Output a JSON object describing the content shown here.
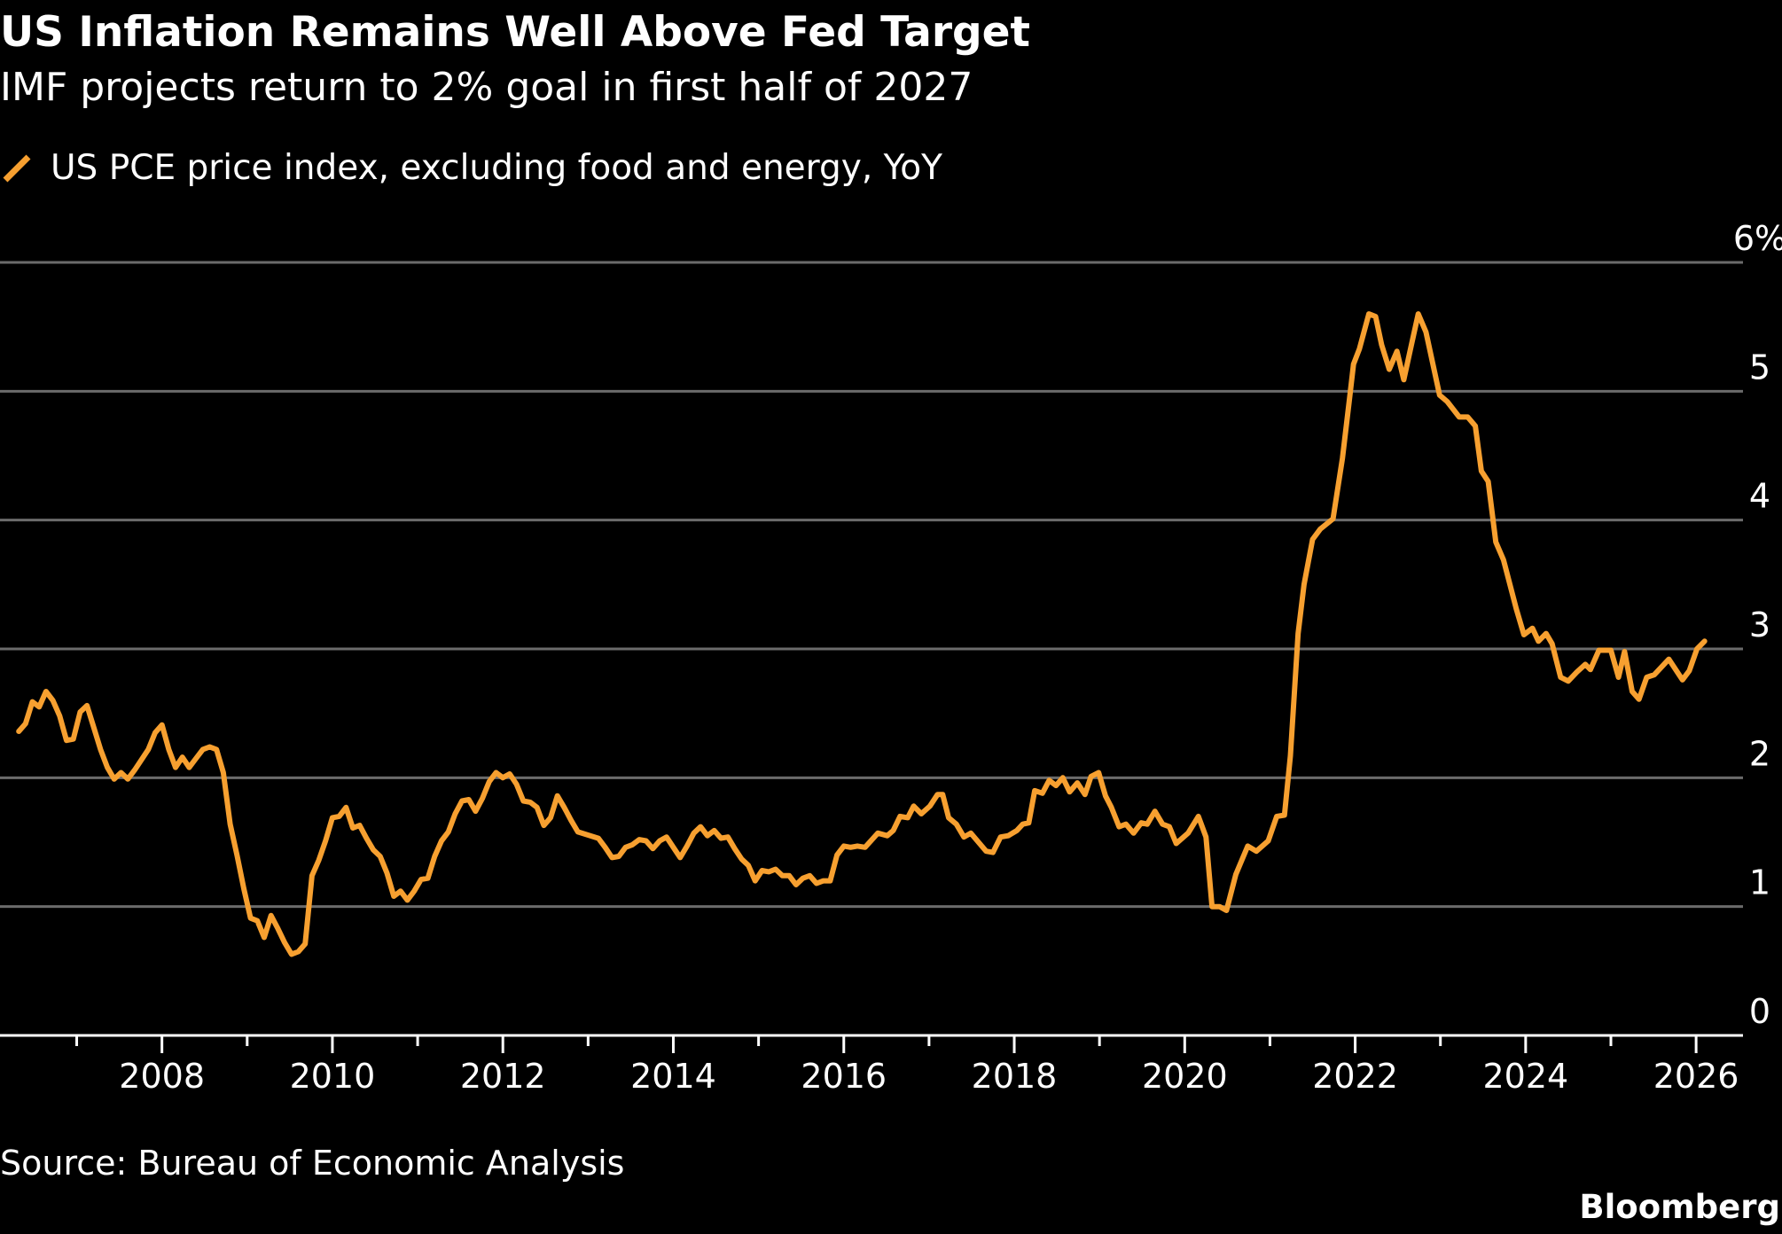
{
  "chart_data": {
    "type": "line",
    "title": "US Inflation Remains Well Above Fed Target",
    "subtitle": "IMF projects return to 2% goal in first half of 2027",
    "xlabel": "",
    "ylabel": "",
    "source": "Source: Bureau of Economic Analysis",
    "logo": "Bloomberg",
    "ylim": [
      0,
      6
    ],
    "xlim": [
      2006.1,
      2026.55
    ],
    "grid": true,
    "legend_position": "top-left",
    "y_ticks": [
      {
        "value": 0,
        "label": "0"
      },
      {
        "value": 1,
        "label": "1"
      },
      {
        "value": 2,
        "label": "2"
      },
      {
        "value": 3,
        "label": "3"
      },
      {
        "value": 4,
        "label": "4"
      },
      {
        "value": 5,
        "label": "5"
      },
      {
        "value": 6,
        "label": "6%"
      }
    ],
    "x_ticks": [
      {
        "value": 2008,
        "label": "2008"
      },
      {
        "value": 2010,
        "label": "2010"
      },
      {
        "value": 2012,
        "label": "2012"
      },
      {
        "value": 2014,
        "label": "2014"
      },
      {
        "value": 2016,
        "label": "2016"
      },
      {
        "value": 2018,
        "label": "2018"
      },
      {
        "value": 2020,
        "label": "2020"
      },
      {
        "value": 2022,
        "label": "2022"
      },
      {
        "value": 2024,
        "label": "2024"
      },
      {
        "value": 2026,
        "label": "2026"
      }
    ],
    "series": [
      {
        "name": "US PCE price index, excluding food and energy, YoY",
        "color": "#f7a030",
        "points": [
          [
            2006.32,
            2.36
          ],
          [
            2006.4,
            2.42
          ],
          [
            2006.48,
            2.59
          ],
          [
            2006.56,
            2.55
          ],
          [
            2006.64,
            2.67
          ],
          [
            2006.72,
            2.6
          ],
          [
            2006.8,
            2.48
          ],
          [
            2006.88,
            2.29
          ],
          [
            2006.96,
            2.3
          ],
          [
            2007.04,
            2.51
          ],
          [
            2007.12,
            2.56
          ],
          [
            2007.2,
            2.39
          ],
          [
            2007.28,
            2.22
          ],
          [
            2007.36,
            2.08
          ],
          [
            2007.44,
            1.99
          ],
          [
            2007.52,
            2.04
          ],
          [
            2007.6,
            1.99
          ],
          [
            2007.68,
            2.06
          ],
          [
            2007.76,
            2.14
          ],
          [
            2007.84,
            2.22
          ],
          [
            2007.92,
            2.35
          ],
          [
            2008.0,
            2.41
          ],
          [
            2008.08,
            2.22
          ],
          [
            2008.16,
            2.08
          ],
          [
            2008.24,
            2.16
          ],
          [
            2008.32,
            2.08
          ],
          [
            2008.4,
            2.15
          ],
          [
            2008.48,
            2.22
          ],
          [
            2008.56,
            2.24
          ],
          [
            2008.64,
            2.22
          ],
          [
            2008.72,
            2.04
          ],
          [
            2008.8,
            1.64
          ],
          [
            2008.88,
            1.4
          ],
          [
            2008.96,
            1.14
          ],
          [
            2009.04,
            0.91
          ],
          [
            2009.12,
            0.89
          ],
          [
            2009.2,
            0.76
          ],
          [
            2009.28,
            0.93
          ],
          [
            2009.36,
            0.83
          ],
          [
            2009.44,
            0.72
          ],
          [
            2009.52,
            0.63
          ],
          [
            2009.6,
            0.65
          ],
          [
            2009.68,
            0.71
          ],
          [
            2009.76,
            1.24
          ],
          [
            2009.84,
            1.36
          ],
          [
            2009.92,
            1.51
          ],
          [
            2010.0,
            1.69
          ],
          [
            2010.08,
            1.7
          ],
          [
            2010.16,
            1.77
          ],
          [
            2010.24,
            1.61
          ],
          [
            2010.32,
            1.63
          ],
          [
            2010.4,
            1.53
          ],
          [
            2010.48,
            1.44
          ],
          [
            2010.56,
            1.39
          ],
          [
            2010.64,
            1.26
          ],
          [
            2010.72,
            1.08
          ],
          [
            2010.8,
            1.12
          ],
          [
            2010.88,
            1.05
          ],
          [
            2010.96,
            1.12
          ],
          [
            2011.04,
            1.21
          ],
          [
            2011.12,
            1.22
          ],
          [
            2011.2,
            1.39
          ],
          [
            2011.28,
            1.51
          ],
          [
            2011.36,
            1.58
          ],
          [
            2011.44,
            1.72
          ],
          [
            2011.52,
            1.82
          ],
          [
            2011.6,
            1.83
          ],
          [
            2011.68,
            1.74
          ],
          [
            2011.76,
            1.84
          ],
          [
            2011.84,
            1.97
          ],
          [
            2011.92,
            2.04
          ],
          [
            2012.0,
            2.0
          ],
          [
            2012.08,
            2.03
          ],
          [
            2012.16,
            1.95
          ],
          [
            2012.24,
            1.82
          ],
          [
            2012.32,
            1.81
          ],
          [
            2012.4,
            1.77
          ],
          [
            2012.48,
            1.63
          ],
          [
            2012.56,
            1.69
          ],
          [
            2012.64,
            1.86
          ],
          [
            2012.72,
            1.77
          ],
          [
            2012.8,
            1.67
          ],
          [
            2012.88,
            1.58
          ],
          [
            2013.12,
            1.53
          ],
          [
            2013.2,
            1.46
          ],
          [
            2013.28,
            1.38
          ],
          [
            2013.36,
            1.39
          ],
          [
            2013.44,
            1.46
          ],
          [
            2013.52,
            1.48
          ],
          [
            2013.6,
            1.52
          ],
          [
            2013.68,
            1.51
          ],
          [
            2013.76,
            1.45
          ],
          [
            2013.84,
            1.51
          ],
          [
            2013.92,
            1.54
          ],
          [
            2014.0,
            1.46
          ],
          [
            2014.08,
            1.38
          ],
          [
            2014.16,
            1.47
          ],
          [
            2014.24,
            1.57
          ],
          [
            2014.32,
            1.62
          ],
          [
            2014.4,
            1.55
          ],
          [
            2014.48,
            1.59
          ],
          [
            2014.56,
            1.53
          ],
          [
            2014.64,
            1.54
          ],
          [
            2014.72,
            1.45
          ],
          [
            2014.8,
            1.37
          ],
          [
            2014.88,
            1.32
          ],
          [
            2014.96,
            1.2
          ],
          [
            2015.04,
            1.28
          ],
          [
            2015.12,
            1.27
          ],
          [
            2015.2,
            1.29
          ],
          [
            2015.28,
            1.24
          ],
          [
            2015.36,
            1.24
          ],
          [
            2015.44,
            1.17
          ],
          [
            2015.52,
            1.22
          ],
          [
            2015.6,
            1.24
          ],
          [
            2015.68,
            1.18
          ],
          [
            2015.76,
            1.2
          ],
          [
            2015.84,
            1.2
          ],
          [
            2015.92,
            1.4
          ],
          [
            2016.0,
            1.47
          ],
          [
            2016.08,
            1.46
          ],
          [
            2016.16,
            1.47
          ],
          [
            2016.25,
            1.46
          ],
          [
            2016.4,
            1.57
          ],
          [
            2016.51,
            1.55
          ],
          [
            2016.58,
            1.59
          ],
          [
            2016.66,
            1.7
          ],
          [
            2016.75,
            1.69
          ],
          [
            2016.82,
            1.78
          ],
          [
            2016.91,
            1.72
          ],
          [
            2017.01,
            1.78
          ],
          [
            2017.1,
            1.87
          ],
          [
            2017.16,
            1.87
          ],
          [
            2017.23,
            1.69
          ],
          [
            2017.32,
            1.64
          ],
          [
            2017.41,
            1.54
          ],
          [
            2017.49,
            1.57
          ],
          [
            2017.67,
            1.43
          ],
          [
            2017.75,
            1.42
          ],
          [
            2017.84,
            1.54
          ],
          [
            2017.93,
            1.55
          ],
          [
            2018.03,
            1.59
          ],
          [
            2018.1,
            1.64
          ],
          [
            2018.17,
            1.65
          ],
          [
            2018.24,
            1.9
          ],
          [
            2018.33,
            1.88
          ],
          [
            2018.41,
            1.98
          ],
          [
            2018.49,
            1.94
          ],
          [
            2018.57,
            2.0
          ],
          [
            2018.65,
            1.89
          ],
          [
            2018.74,
            1.96
          ],
          [
            2018.83,
            1.87
          ],
          [
            2018.9,
            2.01
          ],
          [
            2018.99,
            2.04
          ],
          [
            2019.07,
            1.86
          ],
          [
            2019.14,
            1.77
          ],
          [
            2019.23,
            1.62
          ],
          [
            2019.31,
            1.64
          ],
          [
            2019.4,
            1.57
          ],
          [
            2019.49,
            1.65
          ],
          [
            2019.56,
            1.64
          ],
          [
            2019.65,
            1.74
          ],
          [
            2019.74,
            1.64
          ],
          [
            2019.82,
            1.62
          ],
          [
            2019.9,
            1.49
          ],
          [
            2020.04,
            1.57
          ],
          [
            2020.16,
            1.7
          ],
          [
            2020.25,
            1.54
          ],
          [
            2020.32,
            1.0
          ],
          [
            2020.41,
            1.0
          ],
          [
            2020.49,
            0.97
          ],
          [
            2020.6,
            1.25
          ],
          [
            2020.74,
            1.47
          ],
          [
            2020.84,
            1.43
          ],
          [
            2020.98,
            1.51
          ],
          [
            2021.08,
            1.7
          ],
          [
            2021.17,
            1.71
          ],
          [
            2021.24,
            2.17
          ],
          [
            2021.33,
            3.12
          ],
          [
            2021.4,
            3.5
          ],
          [
            2021.5,
            3.85
          ],
          [
            2021.59,
            3.93
          ],
          [
            2021.74,
            4.01
          ],
          [
            2021.85,
            4.48
          ],
          [
            2021.93,
            4.92
          ],
          [
            2021.98,
            5.21
          ],
          [
            2022.05,
            5.33
          ],
          [
            2022.16,
            5.6
          ],
          [
            2022.24,
            5.58
          ],
          [
            2022.31,
            5.36
          ],
          [
            2022.4,
            5.17
          ],
          [
            2022.49,
            5.31
          ],
          [
            2022.57,
            5.09
          ],
          [
            2022.66,
            5.36
          ],
          [
            2022.74,
            5.6
          ],
          [
            2022.83,
            5.46
          ],
          [
            2022.99,
            4.97
          ],
          [
            2023.08,
            4.92
          ],
          [
            2023.22,
            4.8
          ],
          [
            2023.32,
            4.8
          ],
          [
            2023.41,
            4.73
          ],
          [
            2023.48,
            4.38
          ],
          [
            2023.56,
            4.3
          ],
          [
            2023.65,
            3.83
          ],
          [
            2023.74,
            3.69
          ],
          [
            2023.89,
            3.31
          ],
          [
            2023.98,
            3.11
          ],
          [
            2024.08,
            3.16
          ],
          [
            2024.15,
            3.06
          ],
          [
            2024.24,
            3.12
          ],
          [
            2024.31,
            3.04
          ],
          [
            2024.41,
            2.78
          ],
          [
            2024.5,
            2.75
          ],
          [
            2024.6,
            2.82
          ],
          [
            2024.7,
            2.88
          ],
          [
            2024.76,
            2.84
          ],
          [
            2024.86,
            2.99
          ],
          [
            2025.0,
            2.99
          ],
          [
            2025.09,
            2.78
          ],
          [
            2025.16,
            2.98
          ],
          [
            2025.25,
            2.67
          ],
          [
            2025.33,
            2.61
          ],
          [
            2025.42,
            2.78
          ],
          [
            2025.51,
            2.8
          ],
          [
            2025.68,
            2.92
          ],
          [
            2025.84,
            2.76
          ],
          [
            2025.92,
            2.83
          ],
          [
            2026.01,
            3.0
          ],
          [
            2026.1,
            3.06
          ]
        ]
      }
    ]
  }
}
